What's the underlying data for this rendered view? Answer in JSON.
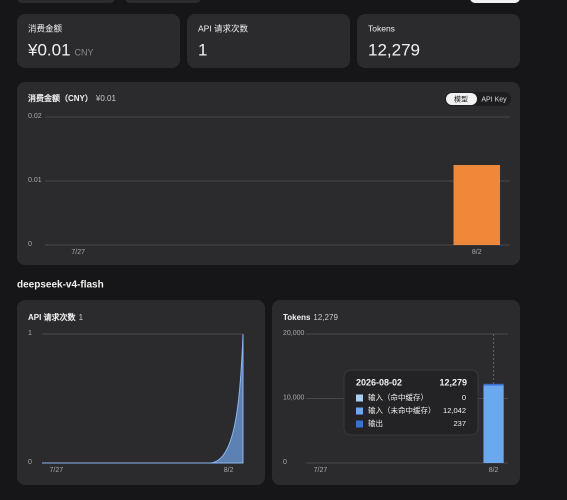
{
  "cards": [
    {
      "label": "消费金额",
      "value": "¥0.01",
      "unit": "CNY"
    },
    {
      "label": "API 请求次数",
      "value": "1"
    },
    {
      "label": "Tokens",
      "value": "12,279"
    }
  ],
  "toggle": [
    "模型",
    "API Key"
  ],
  "section_title": "deepseek-v4-flash",
  "tooltip": {
    "date": "2026-08-02",
    "total": "12,279"
  },
  "chart_data": [
    {
      "type": "bar",
      "title": "消费金额（CNY）",
      "subtitle": "¥0.01",
      "categories": [
        "7/27",
        null,
        null,
        null,
        null,
        null,
        "8/2"
      ],
      "values": [
        0,
        0,
        0,
        0,
        0,
        0,
        0.0125
      ],
      "color": "#f0883a",
      "ylim": [
        0,
        0.02
      ],
      "yticks": [
        0,
        0.01,
        0.02
      ],
      "grid": true
    },
    {
      "type": "area",
      "title": "API 请求次数",
      "subtitle": "1",
      "categories": [
        "7/27",
        null,
        null,
        null,
        null,
        null,
        "8/2"
      ],
      "values": [
        0,
        0,
        0,
        0,
        0,
        0,
        1
      ],
      "color": "#6f9fe0",
      "ylim": [
        0,
        1
      ],
      "yticks": [
        0,
        1
      ],
      "grid": true
    },
    {
      "type": "stacked_bar",
      "title": "Tokens",
      "subtitle": "12,279",
      "categories": [
        "7/27",
        null,
        null,
        null,
        null,
        null,
        "8/2"
      ],
      "series": [
        {
          "name": "输入（命中缓存）",
          "color": "#a9cff5",
          "values": [
            0,
            0,
            0,
            0,
            0,
            0,
            0
          ]
        },
        {
          "name": "输入（未命中缓存）",
          "color": "#6aa9f0",
          "values": [
            0,
            0,
            0,
            0,
            0,
            0,
            12042
          ],
          "value_labels": [
            "0",
            "0",
            "0",
            "0",
            "0",
            "0",
            "12,042"
          ]
        },
        {
          "name": "输出",
          "color": "#3a6fd8",
          "values": [
            0,
            0,
            0,
            0,
            0,
            0,
            237
          ]
        }
      ],
      "ylim": [
        0,
        20000
      ],
      "yticks": [
        0,
        {
          "value": 10000,
          "label": "10,000"
        },
        {
          "value": 20000,
          "label": "20,000"
        }
      ],
      "grid": true
    }
  ]
}
